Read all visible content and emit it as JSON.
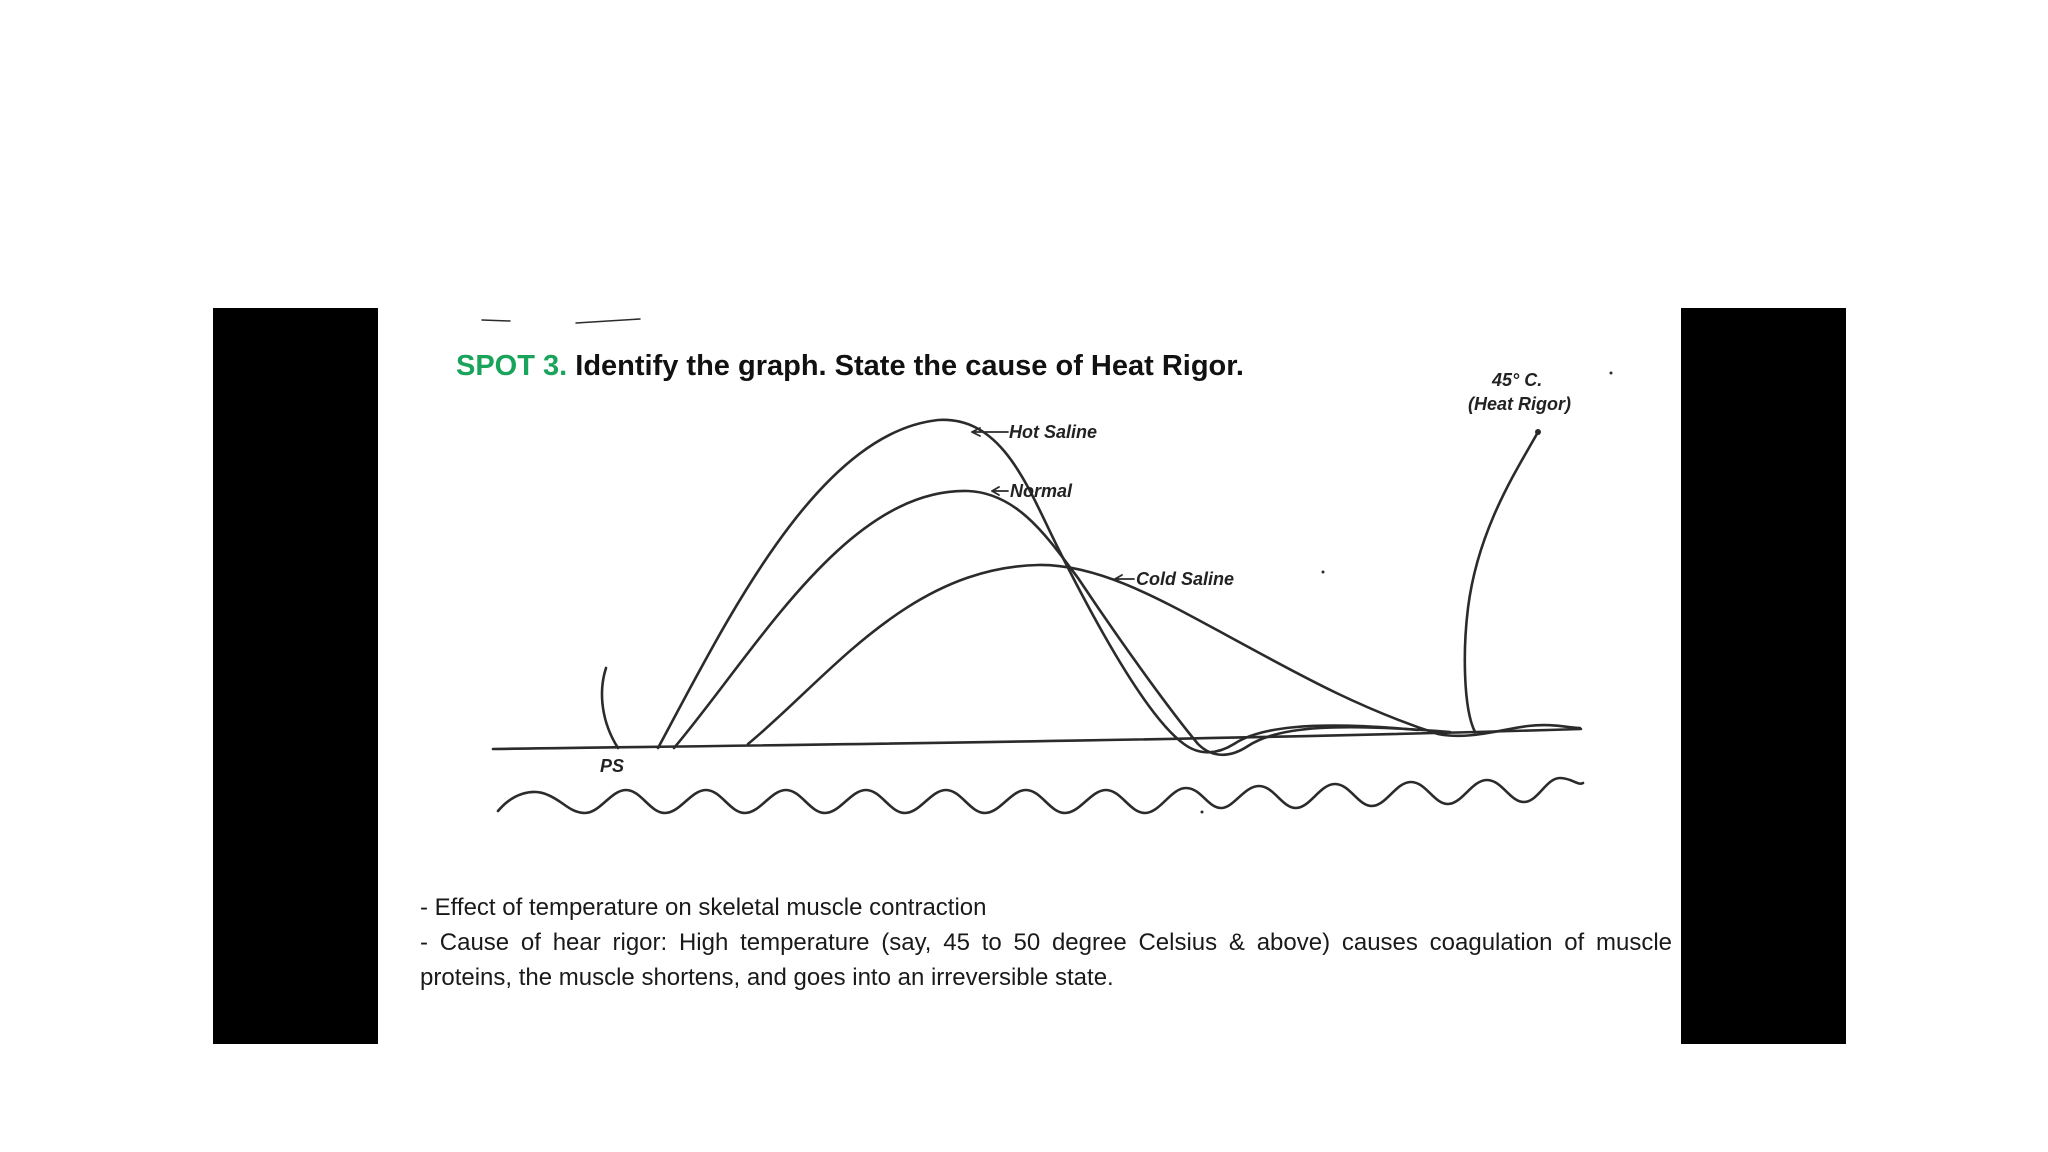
{
  "slide": {
    "spot_label": "SPOT 3.",
    "question": "Identify the graph. State the cause of Heat Rigor."
  },
  "diagram": {
    "labels": {
      "hot_saline": "Hot Saline",
      "normal": "Normal",
      "cold_saline": "Cold Saline",
      "heat_rigor_temp": "45° C.",
      "heat_rigor": "(Heat Rigor)",
      "ps": "PS"
    },
    "line_color": "#2b2b2b"
  },
  "answer": {
    "line1": "- Effect of temperature on skeletal muscle contraction",
    "line2": "- Cause of hear rigor: High temperature (say, 45 to 50 degree Celsius & above) causes coagulation of muscle proteins, the muscle shortens, and goes into an irreversible state."
  },
  "colors": {
    "spot_label": "#19a35b",
    "side_bars": "#000000"
  }
}
